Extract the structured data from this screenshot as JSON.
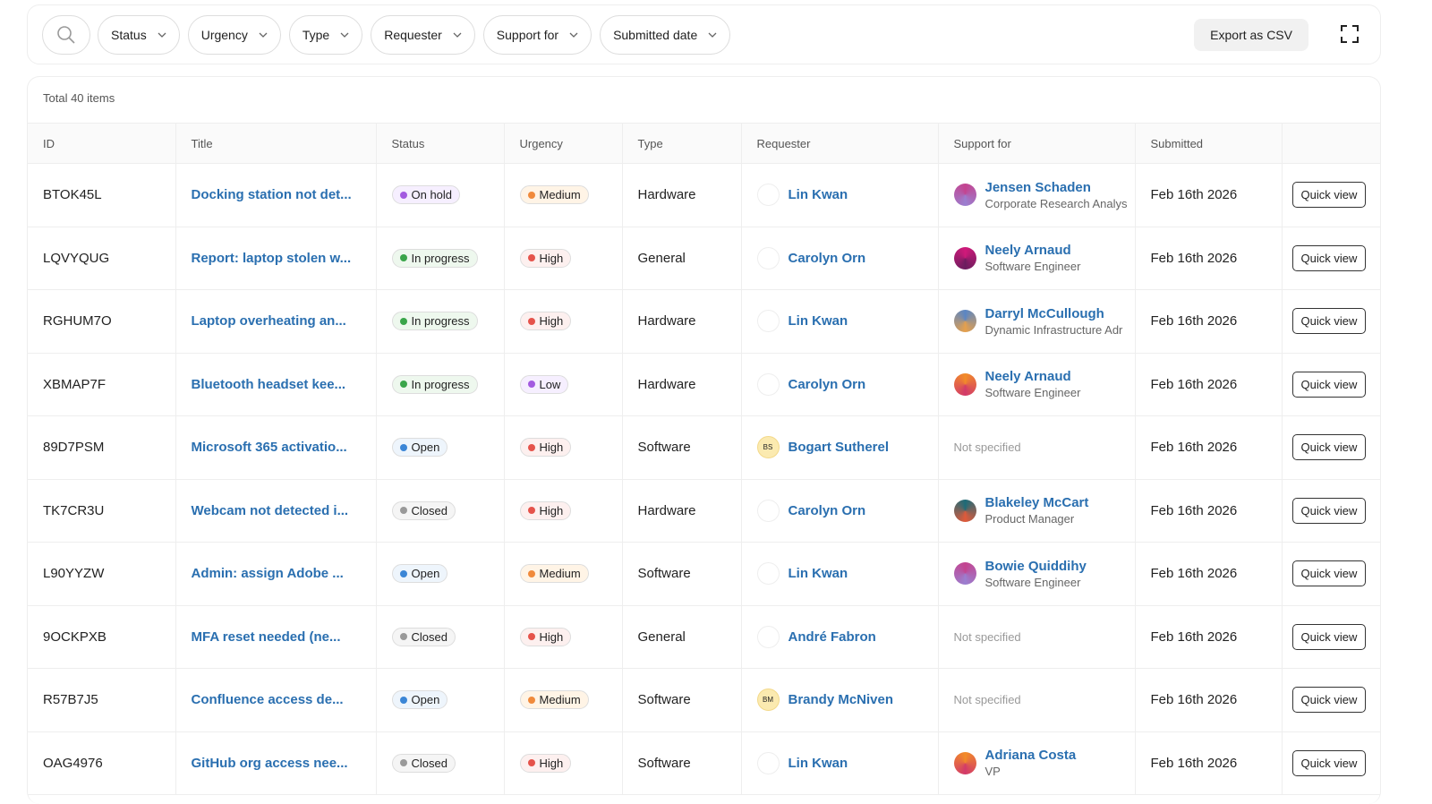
{
  "filters": [
    "Status",
    "Urgency",
    "Type",
    "Requester",
    "Support for",
    "Submitted date"
  ],
  "export": "Export as CSV",
  "total": "Total 40 items",
  "columns": [
    "ID",
    "Title",
    "Status",
    "Urgency",
    "Type",
    "Requester",
    "Support for",
    "Submitted"
  ],
  "rows": [
    {
      "id": "BTOK45L",
      "title": "Docking station not det...",
      "status": "On hold",
      "urgency": "Medium",
      "type": "Hardware",
      "requester": "Lin Kwan",
      "support_for": {
        "name": "Jensen Schaden",
        "role": "Corporate Research Analys"
      },
      "submitted": "Feb 16th 2026",
      "action": "Quick view"
    },
    {
      "id": "LQVYQUG",
      "title": "Report: laptop stolen w...",
      "status": "In progress",
      "urgency": "High",
      "type": "General",
      "requester": "Carolyn Orn",
      "support_for": {
        "name": "Neely Arnaud",
        "role": "Software Engineer"
      },
      "submitted": "Feb 16th 2026",
      "action": "Quick view"
    },
    {
      "id": "RGHUM7O",
      "title": "Laptop overheating an...",
      "status": "In progress",
      "urgency": "High",
      "type": "Hardware",
      "requester": "Lin Kwan",
      "support_for": {
        "name": "Darryl McCullough",
        "role": "Dynamic Infrastructure Adr"
      },
      "submitted": "Feb 16th 2026",
      "action": "Quick view"
    },
    {
      "id": "XBMAP7F",
      "title": "Bluetooth headset kee...",
      "status": "In progress",
      "urgency": "Low",
      "type": "Hardware",
      "requester": "Carolyn Orn",
      "support_for": {
        "name": "Neely Arnaud",
        "role": "Software Engineer"
      },
      "submitted": "Feb 16th 2026",
      "action": "Quick view"
    },
    {
      "id": "89D7PSM",
      "title": "Microsoft 365 activatio...",
      "status": "Open",
      "urgency": "High",
      "type": "Software",
      "requester": "Bogart Sutherel",
      "requester_initials": "BS",
      "support_for": "Not specified",
      "submitted": "Feb 16th 2026",
      "action": "Quick view"
    },
    {
      "id": "TK7CR3U",
      "title": "Webcam not detected i...",
      "status": "Closed",
      "urgency": "High",
      "type": "Hardware",
      "requester": "Carolyn Orn",
      "support_for": {
        "name": "Blakeley McCart",
        "role": "Product Manager"
      },
      "submitted": "Feb 16th 2026",
      "action": "Quick view"
    },
    {
      "id": "L90YYZW",
      "title": "Admin: assign Adobe ...",
      "status": "Open",
      "urgency": "Medium",
      "type": "Software",
      "requester": "Lin Kwan",
      "support_for": {
        "name": "Bowie Quiddihy",
        "role": "Software Engineer"
      },
      "submitted": "Feb 16th 2026",
      "action": "Quick view"
    },
    {
      "id": "9OCKPXB",
      "title": "MFA reset needed (ne...",
      "status": "Closed",
      "urgency": "High",
      "type": "General",
      "requester": "André Fabron",
      "support_for": "Not specified",
      "submitted": "Feb 16th 2026",
      "action": "Quick view"
    },
    {
      "id": "R57B7J5",
      "title": "Confluence access de...",
      "status": "Open",
      "urgency": "Medium",
      "type": "Software",
      "requester": "Brandy McNiven",
      "requester_initials": "BM",
      "support_for": "Not specified",
      "submitted": "Feb 16th 2026",
      "action": "Quick view"
    },
    {
      "id": "OAG4976",
      "title": "GitHub org access nee...",
      "status": "Closed",
      "urgency": "High",
      "type": "Software",
      "requester": "Lin Kwan",
      "support_for": {
        "name": "Adriana Costa",
        "role": "VP"
      },
      "submitted": "Feb 16th 2026",
      "action": "Quick view"
    }
  ]
}
